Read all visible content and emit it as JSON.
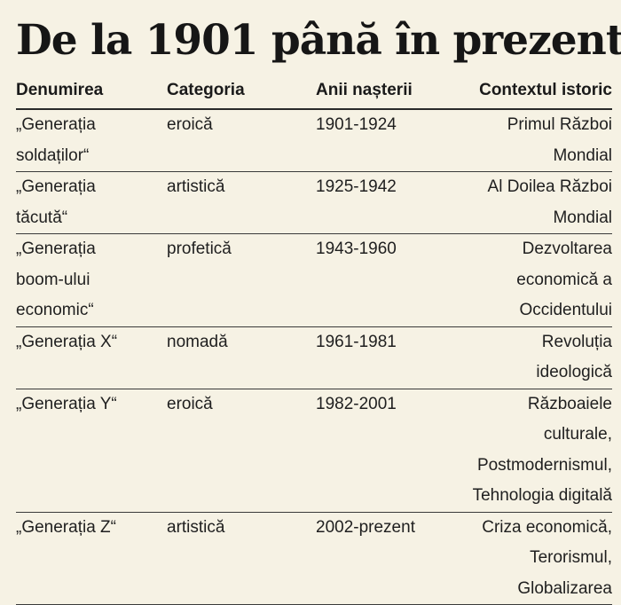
{
  "title": "De la 1901 până în prezent",
  "table": {
    "headers": [
      "Denumirea",
      "Categoria",
      "Anii nașterii",
      "Contextul istoric"
    ],
    "rows": [
      {
        "name": [
          "„Generația",
          "soldaților“"
        ],
        "category": "eroică",
        "years": "1901-1924",
        "context": [
          "Primul Război",
          "Mondial"
        ]
      },
      {
        "name": [
          "„Generația",
          "tăcută“"
        ],
        "category": "artistică",
        "years": "1925-1942",
        "context": [
          "Al Doilea Război",
          "Mondial"
        ]
      },
      {
        "name": [
          "„Generația",
          "boom-ului",
          "economic“"
        ],
        "category": "profetică",
        "years": "1943-1960",
        "context": [
          "Dezvoltarea",
          "economică a",
          "Occidentului"
        ]
      },
      {
        "name": [
          "„Generația X“"
        ],
        "category": "nomadă",
        "years": "1961-1981",
        "context": [
          "Revoluția",
          "ideologică"
        ]
      },
      {
        "name": [
          "„Generația Y“"
        ],
        "category": "eroică",
        "years": "1982-2001",
        "context": [
          "Războaiele culturale,",
          "Postmodernismul,",
          "Tehnologia digitală"
        ]
      },
      {
        "name": [
          "„Generația Z“"
        ],
        "category": "artistică",
        "years": "2002-prezent",
        "context": [
          "Criza economică,",
          "Terorismul,",
          "Globalizarea"
        ]
      }
    ]
  }
}
